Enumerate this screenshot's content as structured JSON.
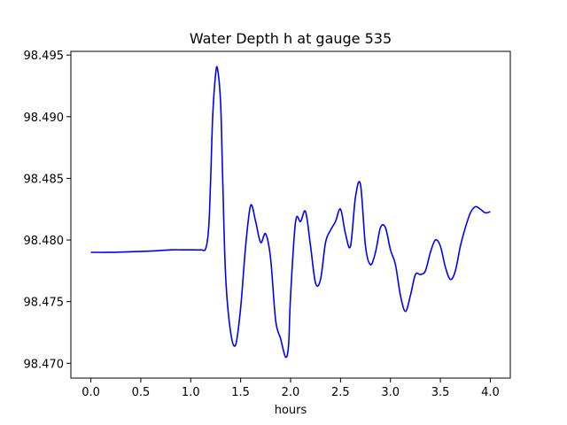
{
  "chart_data": {
    "type": "line",
    "title": "Water Depth h at gauge 535",
    "xlabel": "hours",
    "ylabel": "",
    "xlim": [
      -0.2,
      4.2
    ],
    "ylim": [
      98.4688,
      98.4953
    ],
    "xticks": [
      0.0,
      0.5,
      1.0,
      1.5,
      2.0,
      2.5,
      3.0,
      3.5,
      4.0
    ],
    "xtick_labels": [
      "0.0",
      "0.5",
      "1.0",
      "1.5",
      "2.0",
      "2.5",
      "3.0",
      "3.5",
      "4.0"
    ],
    "yticks": [
      98.47,
      98.475,
      98.48,
      98.485,
      98.49,
      98.495
    ],
    "ytick_labels": [
      "98.470",
      "98.475",
      "98.480",
      "98.485",
      "98.490",
      "98.495"
    ],
    "grid": false,
    "series": [
      {
        "color": "#0000ff",
        "x": [
          0.0,
          0.2,
          0.4,
          0.6,
          0.8,
          0.9,
          1.0,
          1.1,
          1.15,
          1.18,
          1.2,
          1.22,
          1.25,
          1.27,
          1.3,
          1.32,
          1.35,
          1.4,
          1.45,
          1.5,
          1.55,
          1.6,
          1.65,
          1.7,
          1.75,
          1.8,
          1.85,
          1.9,
          1.95,
          1.98,
          2.0,
          2.05,
          2.1,
          2.15,
          2.2,
          2.25,
          2.3,
          2.35,
          2.4,
          2.45,
          2.5,
          2.55,
          2.6,
          2.65,
          2.7,
          2.75,
          2.8,
          2.85,
          2.9,
          2.95,
          3.0,
          3.05,
          3.1,
          3.15,
          3.2,
          3.25,
          3.3,
          3.35,
          3.4,
          3.45,
          3.5,
          3.55,
          3.6,
          3.65,
          3.7,
          3.75,
          3.8,
          3.85,
          3.9,
          3.95,
          4.0
        ],
        "y": [
          98.479,
          98.479,
          98.47905,
          98.4791,
          98.4792,
          98.4792,
          98.4792,
          98.4792,
          98.4793,
          98.481,
          98.485,
          98.49,
          98.4935,
          98.4938,
          98.491,
          98.485,
          98.477,
          98.4725,
          98.4715,
          98.4745,
          98.4795,
          98.4828,
          98.4815,
          98.4798,
          98.4805,
          98.4785,
          98.4735,
          98.472,
          98.4705,
          98.4715,
          98.4755,
          98.4815,
          98.4815,
          98.4823,
          98.4795,
          98.4765,
          98.4768,
          98.4798,
          98.4808,
          98.4815,
          98.4825,
          98.4805,
          98.4795,
          98.4835,
          98.4845,
          98.4795,
          98.478,
          98.479,
          98.481,
          98.481,
          98.4792,
          98.478,
          98.4755,
          98.4742,
          98.4755,
          98.4772,
          98.4772,
          98.4775,
          98.479,
          98.48,
          98.4795,
          98.4778,
          98.4768,
          98.4775,
          98.4795,
          98.481,
          98.4822,
          98.4827,
          98.4825,
          98.4822,
          98.4823
        ]
      }
    ]
  }
}
